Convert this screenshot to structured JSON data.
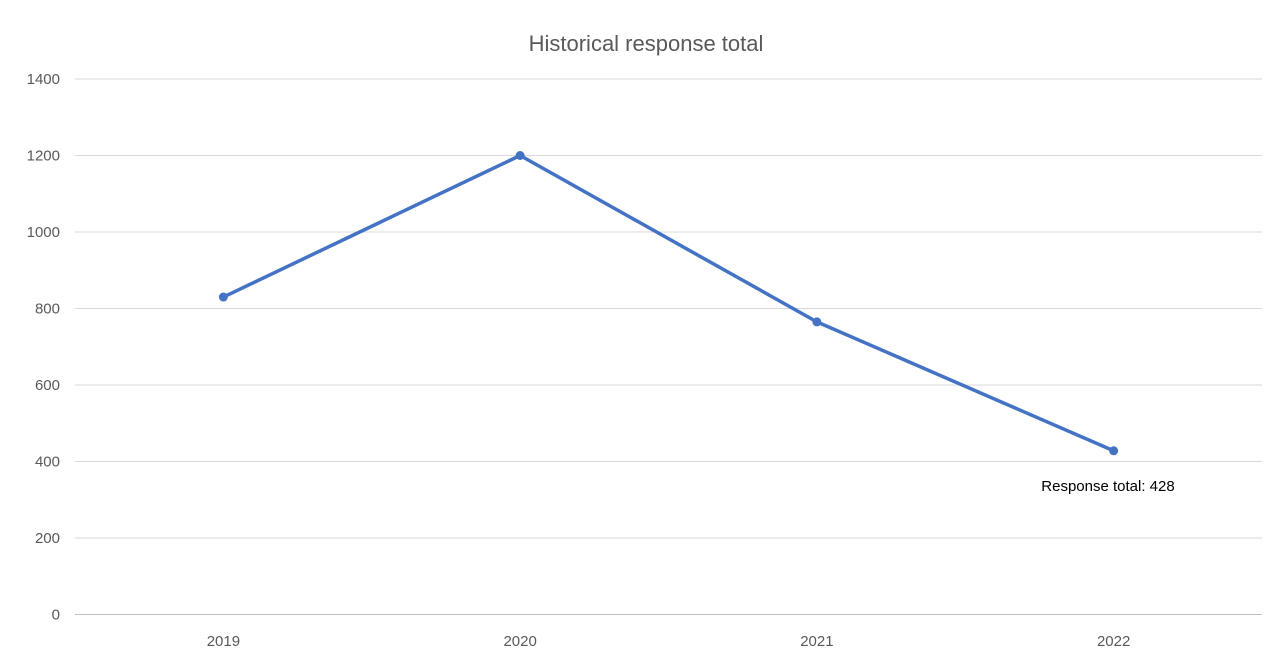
{
  "chart": {
    "title": "Historical response total",
    "annotation": "Response total: 428",
    "colors": {
      "line": "#4472C4",
      "marker": "#4472C4",
      "title_text": "#595959",
      "tick_text": "#595959",
      "annotation_text": "#000000",
      "gridline": "#D9D9D9",
      "axis_line": "#BFBFBF",
      "background": "#FFFFFF"
    }
  },
  "chart_data": {
    "type": "line",
    "title": "Historical response total",
    "categories": [
      "2019",
      "2020",
      "2021",
      "2022"
    ],
    "series": [
      {
        "name": "Response total",
        "values": [
          830,
          1200,
          765,
          428
        ]
      }
    ],
    "xlabel": "",
    "ylabel": "",
    "ylim": [
      0,
      1400
    ],
    "ytick_interval": 200,
    "yticks": [
      0,
      200,
      400,
      600,
      800,
      1000,
      1200,
      1400
    ],
    "grid": true,
    "legend": false,
    "markers": true,
    "annotations": [
      {
        "text": "Response total: 428",
        "category": "2022",
        "value": 428
      }
    ]
  }
}
